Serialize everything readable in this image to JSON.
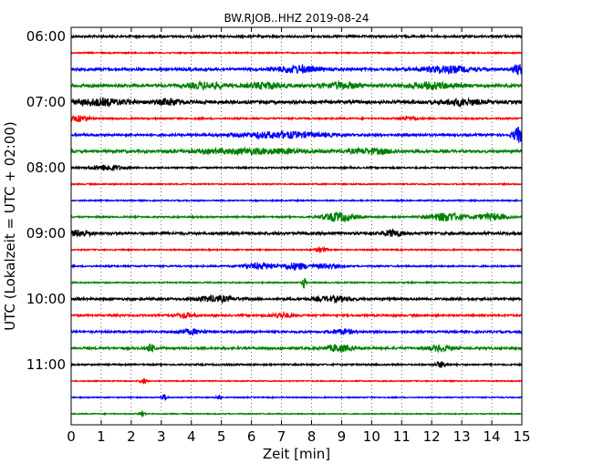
{
  "chart_data": {
    "type": "line",
    "title": "BW.RJOB..HHZ 2019-08-24",
    "xlabel": "Zeit  [min]",
    "ylabel": "UTC (Lokalzeit = UTC + 02:00)",
    "xlim": [
      0,
      15
    ],
    "x_ticks": [
      "0",
      "1",
      "2",
      "3",
      "4",
      "5",
      "6",
      "7",
      "8",
      "9",
      "10",
      "11",
      "12",
      "13",
      "14",
      "15"
    ],
    "y_ticks": [
      "06:00",
      "07:00",
      "08:00",
      "09:00",
      "10:00",
      "11:00"
    ],
    "grid": "vertical dotted lines at each minute",
    "trace_interval_min": 15,
    "start_utc": "06:00",
    "colors": [
      "#000000",
      "#ff0000",
      "#0000ff",
      "#008000"
    ],
    "series": [
      {
        "start": "06:00",
        "color": "#000000",
        "amp": 2.0,
        "events": []
      },
      {
        "start": "06:15",
        "color": "#ff0000",
        "amp": 1.2,
        "events": []
      },
      {
        "start": "06:30",
        "color": "#0000ff",
        "amp": 2.5,
        "events": [
          [
            7.5,
            3.5,
            0.7
          ],
          [
            12.5,
            3.5,
            0.8
          ],
          [
            14.9,
            5,
            0.2
          ]
        ]
      },
      {
        "start": "06:45",
        "color": "#008000",
        "amp": 3.0,
        "events": [
          [
            4.5,
            3,
            0.6
          ],
          [
            6.5,
            3,
            0.6
          ],
          [
            9.0,
            3,
            0.6
          ],
          [
            12.0,
            3,
            0.8
          ]
        ]
      },
      {
        "start": "07:00",
        "color": "#000000",
        "amp": 3.0,
        "events": [
          [
            1.0,
            3,
            1.0
          ],
          [
            3.3,
            3,
            0.4
          ],
          [
            13.0,
            3,
            0.6
          ]
        ]
      },
      {
        "start": "07:15",
        "color": "#ff0000",
        "amp": 1.5,
        "events": [
          [
            0.3,
            3,
            0.3
          ],
          [
            11.2,
            2,
            0.3
          ]
        ]
      },
      {
        "start": "07:30",
        "color": "#0000ff",
        "amp": 2.2,
        "events": [
          [
            7.0,
            3,
            1.5
          ],
          [
            14.9,
            8,
            0.2
          ]
        ]
      },
      {
        "start": "07:45",
        "color": "#008000",
        "amp": 2.5,
        "events": [
          [
            6.0,
            2.5,
            2.0
          ],
          [
            10.0,
            2.5,
            0.8
          ]
        ]
      },
      {
        "start": "08:00",
        "color": "#000000",
        "amp": 1.5,
        "events": [
          [
            1.2,
            3,
            0.5
          ]
        ]
      },
      {
        "start": "08:15",
        "color": "#ff0000",
        "amp": 1.2,
        "events": []
      },
      {
        "start": "08:30",
        "color": "#0000ff",
        "amp": 1.2,
        "events": []
      },
      {
        "start": "08:45",
        "color": "#008000",
        "amp": 1.5,
        "events": [
          [
            8.9,
            5,
            0.5
          ],
          [
            12.5,
            4.5,
            0.6
          ],
          [
            14.0,
            3.5,
            0.5
          ]
        ]
      },
      {
        "start": "09:00",
        "color": "#000000",
        "amp": 2.5,
        "events": [
          [
            0.3,
            3,
            0.4
          ],
          [
            10.7,
            3.5,
            0.3
          ]
        ]
      },
      {
        "start": "09:15",
        "color": "#ff0000",
        "amp": 1.2,
        "events": [
          [
            8.3,
            2.5,
            0.2
          ]
        ]
      },
      {
        "start": "09:30",
        "color": "#0000ff",
        "amp": 1.5,
        "events": [
          [
            6.3,
            3,
            0.6
          ],
          [
            7.5,
            3.5,
            0.4
          ],
          [
            8.5,
            2.5,
            0.4
          ]
        ]
      },
      {
        "start": "09:45",
        "color": "#008000",
        "amp": 1.2,
        "events": [
          [
            7.75,
            6,
            0.06
          ]
        ]
      },
      {
        "start": "10:00",
        "color": "#000000",
        "amp": 2.2,
        "events": [
          [
            4.8,
            3,
            0.6
          ],
          [
            8.7,
            2.5,
            0.6
          ]
        ]
      },
      {
        "start": "10:15",
        "color": "#ff0000",
        "amp": 1.8,
        "events": [
          [
            3.8,
            2.5,
            0.3
          ],
          [
            7.0,
            2.5,
            0.4
          ]
        ]
      },
      {
        "start": "10:30",
        "color": "#0000ff",
        "amp": 2.0,
        "events": [
          [
            4.0,
            2.5,
            0.4
          ],
          [
            9.0,
            2.5,
            0.4
          ]
        ]
      },
      {
        "start": "10:45",
        "color": "#008000",
        "amp": 2.2,
        "events": [
          [
            2.65,
            5,
            0.1
          ],
          [
            8.9,
            3.5,
            0.4
          ],
          [
            12.3,
            3,
            0.4
          ]
        ]
      },
      {
        "start": "11:00",
        "color": "#000000",
        "amp": 1.5,
        "events": [
          [
            12.3,
            3,
            0.2
          ]
        ]
      },
      {
        "start": "11:15",
        "color": "#ff0000",
        "amp": 1.0,
        "events": [
          [
            2.4,
            3,
            0.1
          ]
        ]
      },
      {
        "start": "11:30",
        "color": "#0000ff",
        "amp": 1.0,
        "events": [
          [
            3.1,
            3,
            0.1
          ],
          [
            4.9,
            2,
            0.1
          ]
        ]
      },
      {
        "start": "11:45",
        "color": "#008000",
        "amp": 1.0,
        "events": [
          [
            2.35,
            3,
            0.1
          ]
        ]
      }
    ]
  }
}
